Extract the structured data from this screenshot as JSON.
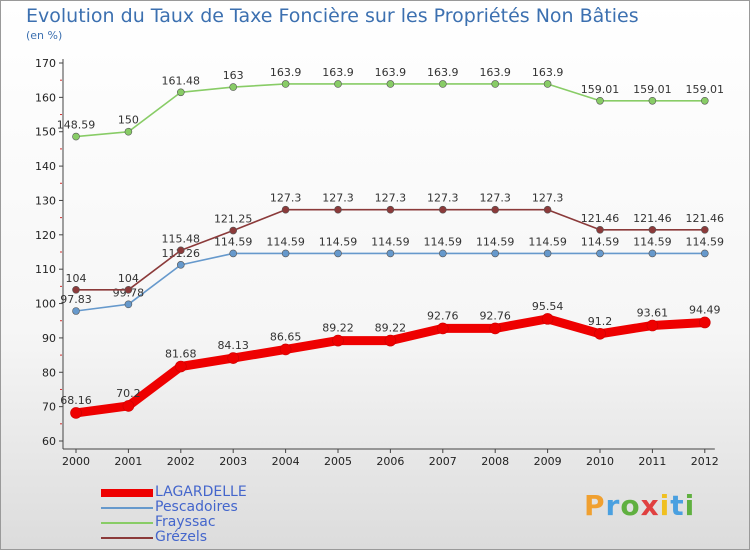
{
  "title": "Evolution du Taux de Taxe Foncière sur les Propriétés Non Bâties",
  "unit_label": "(en %)",
  "logo": {
    "letters": [
      "P",
      "r",
      "o",
      "x",
      "i",
      "t",
      "i"
    ],
    "colors": [
      "#f0a030",
      "#4aa0e0",
      "#60b040",
      "#e04040",
      "#f0c020",
      "#4aa0e0",
      "#60b040"
    ]
  },
  "chart_data": {
    "type": "line",
    "x": [
      "2000",
      "2001",
      "2002",
      "2003",
      "2004",
      "2005",
      "2006",
      "2007",
      "2008",
      "2009",
      "2010",
      "2011",
      "2012"
    ],
    "yticks": [
      "60",
      "70",
      "80",
      "90",
      "100",
      "110",
      "120",
      "130",
      "140",
      "150",
      "160",
      "170"
    ],
    "ylim": [
      60,
      170
    ],
    "grid": false,
    "legend_position": "bottom-left",
    "series": [
      {
        "name": "LAGARDELLE",
        "color": "#ee0000",
        "values": [
          68.16,
          70.2,
          81.68,
          84.13,
          86.65,
          89.22,
          89.22,
          92.76,
          92.76,
          95.54,
          91.2,
          93.61,
          94.49
        ],
        "labels": [
          "68.16",
          "70.2",
          "81.68",
          "84.13",
          "86.65",
          "89.22",
          "89.22",
          "92.76",
          "92.76",
          "95.54",
          "91.2",
          "93.61",
          "94.49"
        ]
      },
      {
        "name": "Pescadoires",
        "color": "#6699cc",
        "values": [
          97.83,
          99.78,
          111.26,
          114.59,
          114.59,
          114.59,
          114.59,
          114.59,
          114.59,
          114.59,
          114.59,
          114.59,
          114.59
        ],
        "labels": [
          "97.83",
          "99.78",
          "111.26",
          "114.59",
          "114.59",
          "114.59",
          "114.59",
          "114.59",
          "114.59",
          "114.59",
          "114.59",
          "114.59",
          "114.59"
        ]
      },
      {
        "name": "Frayssac",
        "color": "#88cc66",
        "values": [
          148.59,
          150,
          161.48,
          163,
          163.9,
          163.9,
          163.9,
          163.9,
          163.9,
          163.9,
          159.01,
          159.01,
          159.01
        ],
        "labels": [
          "148.59",
          "150",
          "161.48",
          "163",
          "163.9",
          "163.9",
          "163.9",
          "163.9",
          "163.9",
          "163.9",
          "159.01",
          "159.01",
          "159.01"
        ]
      },
      {
        "name": "Grézels",
        "color": "#8b3a3a",
        "values": [
          104,
          104,
          115.48,
          121.25,
          127.3,
          127.3,
          127.3,
          127.3,
          127.3,
          127.3,
          121.46,
          121.46,
          121.46
        ],
        "labels": [
          "104",
          "104",
          "115.48",
          "121.25",
          "127.3",
          "127.3",
          "127.3",
          "127.3",
          "127.3",
          "127.3",
          "121.46",
          "121.46",
          "121.46"
        ]
      }
    ]
  }
}
